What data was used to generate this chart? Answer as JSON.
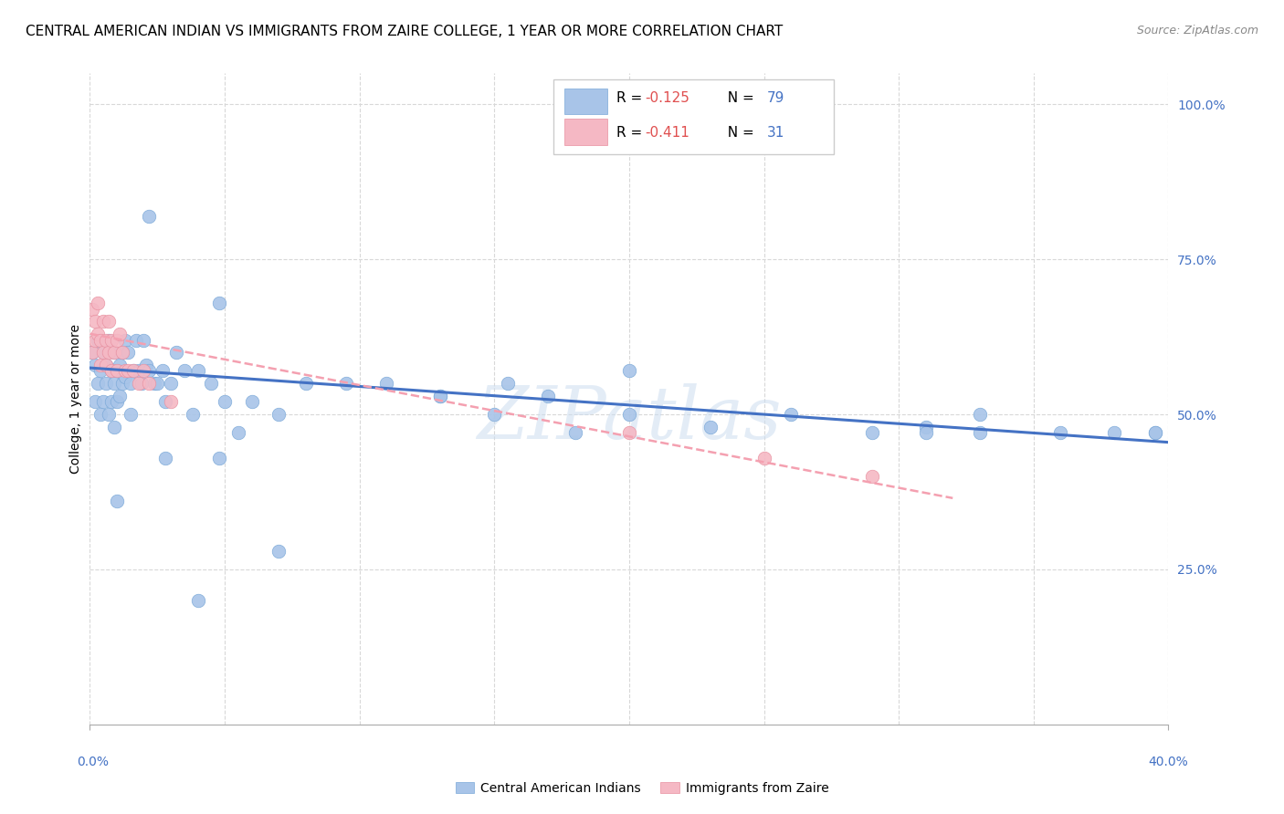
{
  "title": "CENTRAL AMERICAN INDIAN VS IMMIGRANTS FROM ZAIRE COLLEGE, 1 YEAR OR MORE CORRELATION CHART",
  "source": "Source: ZipAtlas.com",
  "ylabel": "College, 1 year or more",
  "right_yticks": [
    "100.0%",
    "75.0%",
    "50.0%",
    "25.0%"
  ],
  "right_ytick_vals": [
    1.0,
    0.75,
    0.5,
    0.25
  ],
  "xmin": 0.0,
  "xmax": 0.4,
  "ymin": 0.0,
  "ymax": 1.05,
  "blue_color": "#a8c4e8",
  "pink_color": "#f5b8c4",
  "blue_edge_color": "#7aa8d8",
  "pink_edge_color": "#e890a0",
  "blue_line_color": "#4472c4",
  "pink_line_color": "#f4a0b0",
  "legend_R1_prefix": "R = ",
  "legend_R1_val": "-0.125",
  "legend_N1_prefix": "N = ",
  "legend_N1_val": "79",
  "legend_R2_prefix": "R = ",
  "legend_R2_val": "-0.411",
  "legend_N2_prefix": "N = ",
  "legend_N2_val": "31",
  "legend_R_color": "#e05050",
  "legend_N_color": "#4472c4",
  "watermark": "ZIPatlas",
  "blue_scatter_x": [
    0.001,
    0.002,
    0.002,
    0.003,
    0.003,
    0.004,
    0.004,
    0.005,
    0.005,
    0.006,
    0.006,
    0.007,
    0.007,
    0.008,
    0.008,
    0.009,
    0.009,
    0.009,
    0.01,
    0.01,
    0.011,
    0.011,
    0.012,
    0.012,
    0.013,
    0.013,
    0.014,
    0.015,
    0.015,
    0.016,
    0.017,
    0.018,
    0.019,
    0.02,
    0.021,
    0.022,
    0.024,
    0.025,
    0.027,
    0.028,
    0.03,
    0.032,
    0.035,
    0.038,
    0.04,
    0.045,
    0.05,
    0.055,
    0.06,
    0.07,
    0.08,
    0.095,
    0.11,
    0.13,
    0.15,
    0.17,
    0.2,
    0.23,
    0.26,
    0.29,
    0.31,
    0.33,
    0.36,
    0.38,
    0.395,
    0.01,
    0.022,
    0.155,
    0.33,
    0.395,
    0.028,
    0.048,
    0.13,
    0.2,
    0.31,
    0.048,
    0.18,
    0.07,
    0.04
  ],
  "blue_scatter_y": [
    0.6,
    0.58,
    0.52,
    0.62,
    0.55,
    0.57,
    0.5,
    0.6,
    0.52,
    0.58,
    0.55,
    0.62,
    0.5,
    0.57,
    0.52,
    0.6,
    0.55,
    0.48,
    0.57,
    0.52,
    0.58,
    0.53,
    0.6,
    0.55,
    0.62,
    0.56,
    0.6,
    0.55,
    0.5,
    0.57,
    0.62,
    0.57,
    0.55,
    0.62,
    0.58,
    0.57,
    0.55,
    0.55,
    0.57,
    0.52,
    0.55,
    0.6,
    0.57,
    0.5,
    0.57,
    0.55,
    0.52,
    0.47,
    0.52,
    0.5,
    0.55,
    0.55,
    0.55,
    0.53,
    0.5,
    0.53,
    0.5,
    0.48,
    0.5,
    0.47,
    0.48,
    0.5,
    0.47,
    0.47,
    0.47,
    0.36,
    0.82,
    0.55,
    0.47,
    0.47,
    0.43,
    0.43,
    0.53,
    0.57,
    0.47,
    0.68,
    0.47,
    0.28,
    0.2
  ],
  "pink_scatter_x": [
    0.001,
    0.001,
    0.002,
    0.002,
    0.003,
    0.003,
    0.004,
    0.004,
    0.005,
    0.005,
    0.006,
    0.006,
    0.007,
    0.007,
    0.008,
    0.008,
    0.009,
    0.01,
    0.01,
    0.011,
    0.012,
    0.013,
    0.014,
    0.016,
    0.018,
    0.02,
    0.022,
    0.03,
    0.2,
    0.25,
    0.29
  ],
  "pink_scatter_y": [
    0.67,
    0.6,
    0.65,
    0.62,
    0.68,
    0.63,
    0.62,
    0.58,
    0.65,
    0.6,
    0.62,
    0.58,
    0.65,
    0.6,
    0.62,
    0.57,
    0.6,
    0.62,
    0.57,
    0.63,
    0.6,
    0.57,
    0.57,
    0.57,
    0.55,
    0.57,
    0.55,
    0.52,
    0.47,
    0.43,
    0.4
  ],
  "blue_line_x": [
    0.0,
    0.4
  ],
  "blue_line_y": [
    0.575,
    0.455
  ],
  "pink_line_x": [
    0.0,
    0.32
  ],
  "pink_line_y": [
    0.63,
    0.365
  ],
  "grid_color": "#d8d8d8",
  "title_fontsize": 11,
  "axis_label_color": "#4472c4",
  "tick_label_fontsize": 10,
  "bottom_legend_blue_label": "Central American Indians",
  "bottom_legend_pink_label": "Immigrants from Zaire"
}
